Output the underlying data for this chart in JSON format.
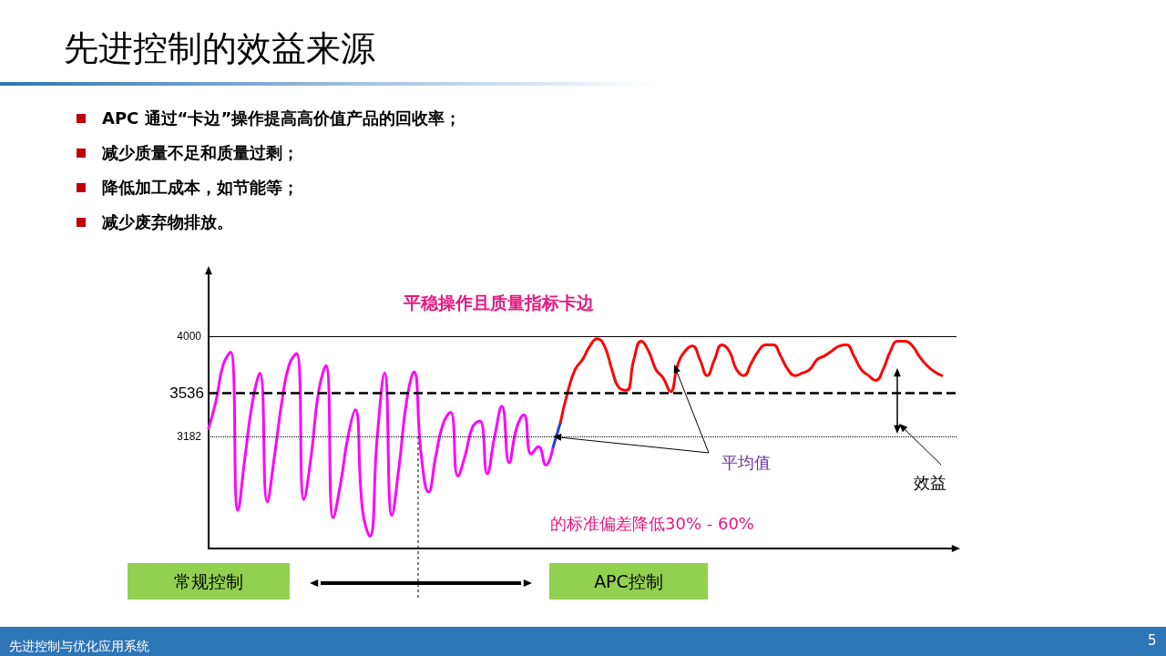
{
  "chart_data": {
    "type": "line",
    "title": "先进控制的效益来源",
    "subtitle": "平稳操作且质量指标卡边",
    "annotations": [
      "APC 通过“卡边”操作提高高价值产品的回收率；",
      "减少质量不足和质量过剩；",
      "降低加工成本，如节能等；",
      "减少废弃物排放。",
      "的标准偏差降低30% - 60%",
      "平均值",
      "效益",
      "常规控制",
      "APC控制",
      "先进控制与优化应用系统",
      "5"
    ],
    "categories": [
      null,
      null,
      null,
      null,
      null,
      null,
      null,
      null,
      null,
      null,
      null,
      null,
      null,
      null,
      null,
      null,
      null,
      null,
      null,
      null,
      null,
      null,
      null,
      null,
      null,
      null,
      null,
      null,
      null,
      null,
      null,
      null,
      null,
      null,
      null,
      null,
      null,
      null,
      null,
      null,
      null,
      null,
      null,
      null,
      null,
      null,
      null,
      null,
      null,
      null,
      null,
      null,
      null,
      null,
      null,
      null,
      null,
      null,
      null,
      null,
      null,
      null,
      null,
      null,
      null,
      null,
      null,
      null,
      null,
      null,
      null,
      null,
      null,
      null,
      null,
      null,
      null,
      null,
      null,
      null,
      null,
      null,
      null,
      null,
      null,
      null,
      null,
      null,
      null,
      null,
      null,
      null,
      null,
      null,
      null,
      null,
      null,
      null,
      null,
      null,
      null,
      null,
      null
    ],
    "series": [
      {
        "color": "#ff00ff",
        "values": [
          3250,
          3470,
          3770,
          3870,
          2580,
          3030,
          3470,
          3700,
          2650,
          3030,
          3470,
          3770,
          3860,
          2670,
          3030,
          3550,
          3760,
          2520,
          2800,
          3180,
          3400,
          2580,
          2370,
          3180,
          3700,
          2540,
          2950,
          3470,
          3710,
          3030,
          2730,
          3030,
          3290,
          3380,
          2860,
          3030,
          3260,
          3310,
          2880,
          3180,
          3430,
          2970,
          3250,
          3360,
          3040,
          3100,
          2950,
          3100,
          null,
          null,
          null,
          null,
          null,
          null,
          null,
          null,
          null,
          null,
          null,
          null,
          null,
          null,
          null,
          null,
          null,
          null,
          null,
          null,
          null,
          null,
          null,
          null,
          null,
          null,
          null,
          null,
          null,
          null,
          null,
          null,
          null,
          null,
          null,
          null,
          null,
          null,
          null,
          null,
          null,
          null,
          null,
          null,
          null,
          null,
          null,
          null,
          null,
          null,
          null,
          null,
          null,
          null,
          null
        ]
      },
      {
        "color": "#1f3fe0",
        "values": [
          null,
          null,
          null,
          null,
          null,
          null,
          null,
          null,
          null,
          null,
          null,
          null,
          null,
          null,
          null,
          null,
          null,
          null,
          null,
          null,
          null,
          null,
          null,
          null,
          null,
          null,
          null,
          null,
          null,
          null,
          null,
          null,
          null,
          null,
          null,
          null,
          null,
          null,
          null,
          null,
          null,
          null,
          null,
          null,
          null,
          null,
          null,
          3100,
          3300,
          null,
          null,
          null,
          null,
          null,
          null,
          null,
          null,
          null,
          null,
          null,
          null,
          null,
          null,
          null,
          null,
          null,
          null,
          null,
          null,
          null,
          null,
          null,
          null,
          null,
          null,
          null,
          null,
          null,
          null,
          null,
          null,
          null,
          null,
          null,
          null,
          null,
          null,
          null,
          null,
          null,
          null,
          null,
          null,
          null,
          null,
          null,
          null,
          null,
          null,
          null,
          null,
          null,
          null
        ]
      },
      {
        "color": "#ff0000",
        "values": [
          null,
          null,
          null,
          null,
          null,
          null,
          null,
          null,
          null,
          null,
          null,
          null,
          null,
          null,
          null,
          null,
          null,
          null,
          null,
          null,
          null,
          null,
          null,
          null,
          null,
          null,
          null,
          null,
          null,
          null,
          null,
          null,
          null,
          null,
          null,
          null,
          null,
          null,
          null,
          null,
          null,
          null,
          null,
          null,
          null,
          null,
          null,
          null,
          3300,
          3550,
          3730,
          3810,
          3920,
          3980,
          3920,
          3730,
          3580,
          3560,
          3810,
          3960,
          3880,
          3730,
          3660,
          3550,
          3770,
          3880,
          3920,
          3810,
          3680,
          3810,
          3930,
          3880,
          3730,
          3680,
          3780,
          3880,
          3930,
          3930,
          3840,
          3730,
          3680,
          3700,
          3730,
          3810,
          3840,
          3880,
          3920,
          3930,
          3840,
          3730,
          3680,
          3640,
          3730,
          3880,
          3960,
          3960,
          3920,
          3830,
          3760,
          3710,
          3680,
          null,
          null
        ]
      }
    ],
    "ylim": [
      2270,
      4550
    ],
    "yticks": [
      3182,
      4000
    ],
    "ref_lines": [
      {
        "axis": "y",
        "value": 4000,
        "label": null,
        "color": "#000000",
        "line_style": "solid"
      },
      {
        "axis": "y",
        "value": 3182,
        "label": null,
        "color": "#000000",
        "line_style": "dotted"
      },
      {
        "axis": "y",
        "value": 3536,
        "label": "3536",
        "color": "#000000",
        "line_style": "dashed"
      }
    ],
    "grid": false,
    "marker": "none",
    "line_style": "solid",
    "tick_labels": "y"
  }
}
